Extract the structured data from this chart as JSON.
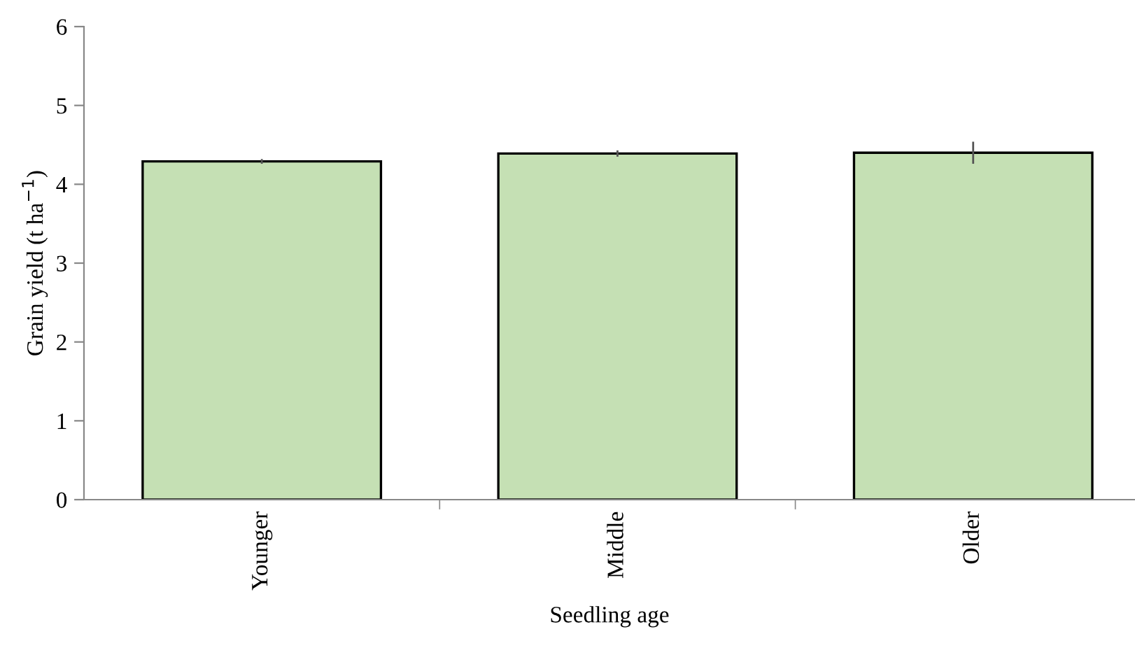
{
  "chart_data": {
    "type": "bar",
    "xlabel": "Seedling age",
    "ylabel": "Grain yield (t ha$^{−1}$)",
    "categories": [
      "Younger",
      "Middle",
      "Older"
    ],
    "values": [
      4.29,
      4.39,
      4.4
    ],
    "errors": [
      0.03,
      0.04,
      0.14
    ],
    "color": "#c5e0b4",
    "ylim": [
      0,
      6
    ],
    "yticks": [
      0,
      1,
      2,
      3,
      4,
      5,
      6
    ],
    "grid": false,
    "legend": false
  }
}
